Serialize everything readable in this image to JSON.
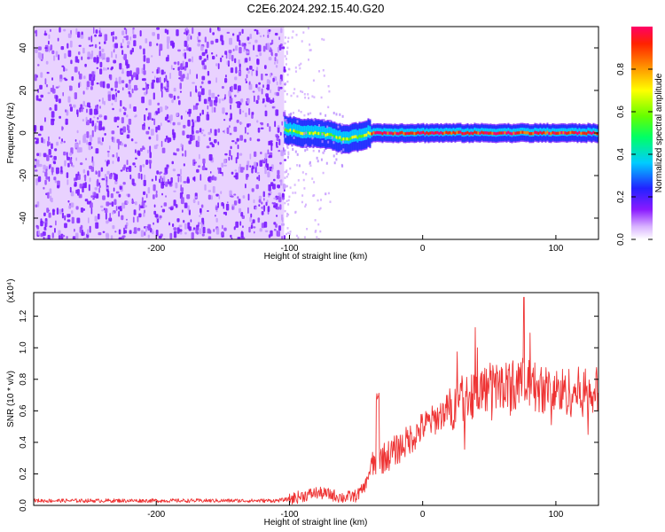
{
  "title": "C2E6.2024.292.15.40.G20",
  "colors": {
    "snr_line": "#ee3333",
    "background": "#ffffff",
    "axis": "#000000"
  },
  "chart_data": [
    {
      "type": "heatmap",
      "xlabel": "Height of straight line (km)",
      "ylabel": "Frequency (Hz)",
      "xlim": [
        -292,
        132
      ],
      "ylim": [
        -50,
        50
      ],
      "xticks": [
        -200,
        -100,
        0,
        100
      ],
      "yticks": [
        -40,
        -20,
        0,
        20,
        40
      ],
      "grid": false,
      "colorbar": {
        "label": "Normalized spectral amplitude",
        "range": [
          0.0,
          1.0
        ],
        "ticks": [
          0.0,
          0.2,
          0.4,
          0.6,
          0.8
        ],
        "colormap": "violet-blue-cyan-green-yellow-orange-red"
      },
      "regions": [
        {
          "name": "broadband noise",
          "x": [
            -292,
            -104
          ],
          "frequency": [
            -50,
            50
          ],
          "amplitude": 0.15
        },
        {
          "name": "signal band",
          "x": [
            -104,
            132
          ],
          "center_frequency": 0,
          "half_width_hz": 4,
          "peak_amplitude": 1.0
        }
      ],
      "band_center_frequency": [
        {
          "x": -100,
          "y": 1
        },
        {
          "x": -90,
          "y": 0
        },
        {
          "x": -80,
          "y": 0
        },
        {
          "x": -70,
          "y": -1
        },
        {
          "x": -60,
          "y": -3
        },
        {
          "x": -50,
          "y": -2
        },
        {
          "x": -40,
          "y": 0
        },
        {
          "x": 0,
          "y": 0
        },
        {
          "x": 50,
          "y": 0
        },
        {
          "x": 100,
          "y": 0
        },
        {
          "x": 132,
          "y": 0
        }
      ]
    },
    {
      "type": "line",
      "xlabel": "Height of straight line (km)",
      "ylabel": "SNR (10 * v/v)",
      "yscale_label": "(x10⁴)",
      "xlim": [
        -292,
        132
      ],
      "ylim": [
        0,
        1.35
      ],
      "xticks": [
        -200,
        -100,
        0,
        100
      ],
      "yticks": [
        0.0,
        0.2,
        0.4,
        0.6,
        0.8,
        1.0,
        1.2
      ],
      "grid": false,
      "series": [
        {
          "color": "#ee3333",
          "x": [
            -292,
            -250,
            -200,
            -150,
            -110,
            -100,
            -90,
            -80,
            -70,
            -60,
            -50,
            -45,
            -42,
            -40,
            -35,
            -30,
            -25,
            -20,
            -15,
            -10,
            -5,
            0,
            10,
            20,
            30,
            40,
            50,
            60,
            70,
            75,
            80,
            90,
            100,
            110,
            120,
            132
          ],
          "y": [
            0.03,
            0.03,
            0.03,
            0.03,
            0.03,
            0.04,
            0.06,
            0.08,
            0.07,
            0.05,
            0.06,
            0.1,
            0.15,
            0.22,
            0.28,
            0.3,
            0.32,
            0.35,
            0.38,
            0.42,
            0.45,
            0.5,
            0.55,
            0.62,
            0.68,
            0.72,
            0.75,
            0.76,
            0.77,
            0.78,
            0.76,
            0.74,
            0.72,
            0.72,
            0.72,
            0.72
          ]
        }
      ]
    }
  ]
}
